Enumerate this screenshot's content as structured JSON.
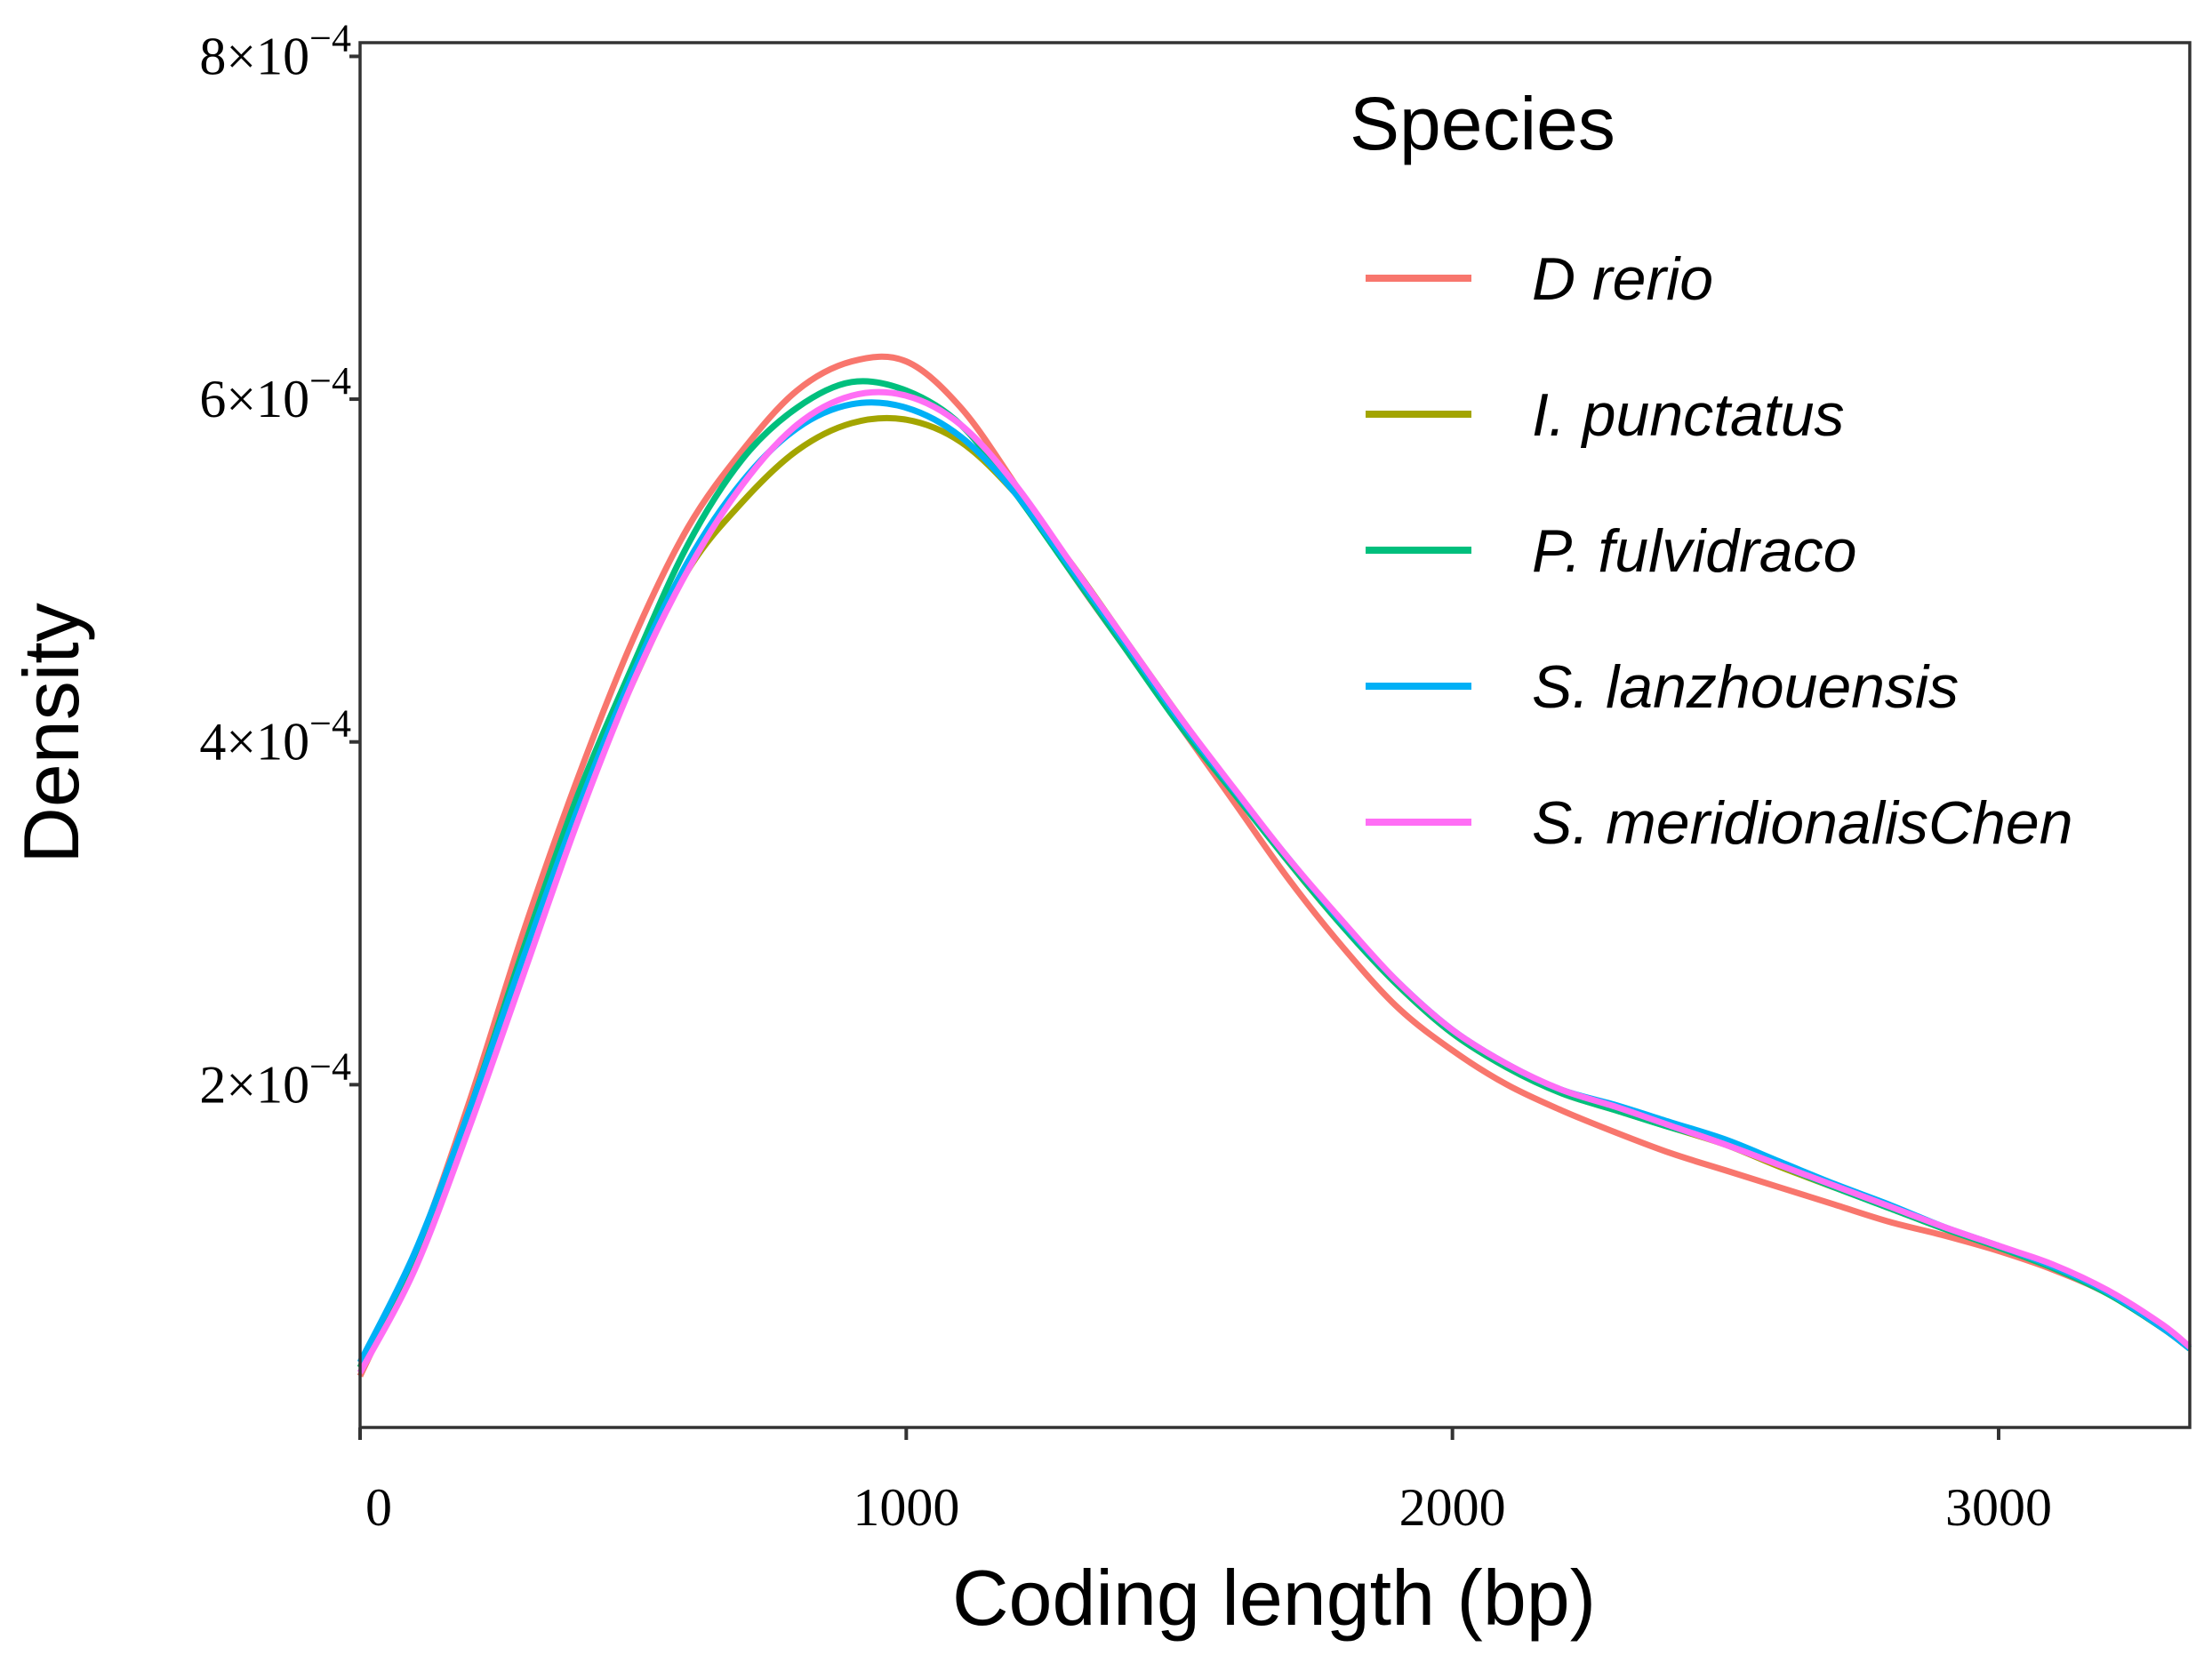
{
  "chart_data": {
    "type": "line",
    "title": "",
    "xlabel": "Coding length (bp)",
    "ylabel": "Density",
    "xlim": [
      0,
      3350
    ],
    "ylim": [
      0,
      0.000808
    ],
    "y_value_multiplier": 0.0001,
    "grid": false,
    "x_ticks": [
      {
        "value": 0,
        "label": "0"
      },
      {
        "value": 1000,
        "label": "1000"
      },
      {
        "value": 2000,
        "label": "2000"
      },
      {
        "value": 3000,
        "label": "3000"
      }
    ],
    "y_ticks": [
      {
        "value": 0.0002,
        "base": "2×10",
        "exp": "−4"
      },
      {
        "value": 0.0004,
        "base": "4×10",
        "exp": "−4"
      },
      {
        "value": 0.0006,
        "base": "6×10",
        "exp": "−4"
      },
      {
        "value": 0.0008,
        "base": "8×10",
        "exp": "−4"
      }
    ],
    "legend": {
      "title": "Species",
      "placement": "top-right"
    },
    "x": [
      0,
      100,
      200,
      300,
      400,
      500,
      600,
      700,
      800,
      900,
      1000,
      1100,
      1200,
      1300,
      1400,
      1500,
      1600,
      1700,
      1800,
      1900,
      2000,
      2100,
      2200,
      2300,
      2400,
      2500,
      2600,
      2700,
      2800,
      2900,
      3000,
      3100,
      3200,
      3300,
      3350
    ],
    "series": [
      {
        "name": "D rerio",
        "color": "#F8766D",
        "values": [
          0.3,
          1.0,
          1.9,
          2.9,
          3.8,
          4.6,
          5.25,
          5.7,
          6.05,
          6.22,
          6.22,
          5.95,
          5.5,
          5.0,
          4.55,
          4.1,
          3.65,
          3.2,
          2.8,
          2.45,
          2.2,
          2.0,
          1.85,
          1.72,
          1.6,
          1.5,
          1.4,
          1.3,
          1.2,
          1.12,
          1.03,
          0.92,
          0.78,
          0.58,
          0.46
        ]
      },
      {
        "name": "I. punctatus",
        "color": "#A3A500",
        "values": [
          0.35,
          1.0,
          1.85,
          2.75,
          3.6,
          4.35,
          5.0,
          5.4,
          5.7,
          5.86,
          5.88,
          5.75,
          5.45,
          5.05,
          4.6,
          4.15,
          3.72,
          3.3,
          2.92,
          2.58,
          2.3,
          2.1,
          1.95,
          1.85,
          1.75,
          1.65,
          1.52,
          1.4,
          1.28,
          1.16,
          1.05,
          0.93,
          0.78,
          0.58,
          0.46
        ]
      },
      {
        "name": "P. fulvidraco",
        "color": "#00BF7D",
        "values": [
          0.35,
          1.0,
          1.85,
          2.8,
          3.7,
          4.45,
          5.15,
          5.65,
          5.95,
          6.1,
          6.05,
          5.85,
          5.45,
          5.0,
          4.55,
          4.1,
          3.7,
          3.3,
          2.92,
          2.58,
          2.3,
          2.1,
          1.95,
          1.85,
          1.75,
          1.66,
          1.53,
          1.4,
          1.28,
          1.16,
          1.05,
          0.93,
          0.78,
          0.58,
          0.46
        ]
      },
      {
        "name": "S. lanzhouensis",
        "color": "#00B0F6",
        "values": [
          0.38,
          1.02,
          1.85,
          2.75,
          3.62,
          4.4,
          5.05,
          5.52,
          5.83,
          5.97,
          5.95,
          5.78,
          5.45,
          5.02,
          4.58,
          4.13,
          3.72,
          3.32,
          2.94,
          2.6,
          2.32,
          2.12,
          1.97,
          1.88,
          1.78,
          1.68,
          1.55,
          1.42,
          1.3,
          1.17,
          1.06,
          0.94,
          0.79,
          0.58,
          0.46
        ]
      },
      {
        "name": "S. meridionalisChen",
        "color": "#FF6EF5",
        "values": [
          0.32,
          0.92,
          1.75,
          2.65,
          3.55,
          4.35,
          5.0,
          5.5,
          5.85,
          6.02,
          6.02,
          5.85,
          5.5,
          5.05,
          4.6,
          4.15,
          3.73,
          3.32,
          2.95,
          2.6,
          2.32,
          2.12,
          1.97,
          1.87,
          1.76,
          1.65,
          1.53,
          1.41,
          1.29,
          1.17,
          1.06,
          0.95,
          0.8,
          0.6,
          0.47
        ]
      }
    ]
  }
}
